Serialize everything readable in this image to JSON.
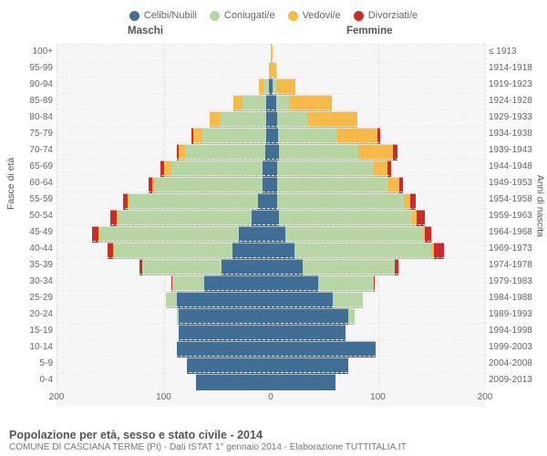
{
  "chart": {
    "type": "population-pyramid",
    "title": "Popolazione per età, sesso e stato civile - 2014",
    "subtitle": "COMUNE DI CASCIANA TERME (PI) - Dati ISTAT 1° gennaio 2014 - Elaborazione TUTTITALIA.IT",
    "header_left": "Maschi",
    "header_right": "Femmine",
    "y_left_label": "Fasce di età",
    "y_right_label": "Anni di nascita",
    "x_max": 200,
    "x_ticks": [
      200,
      100,
      0,
      100,
      200
    ],
    "colors": {
      "celibi": "#3f6f97",
      "coniugati": "#b7d6a3",
      "vedovi": "#f7ba49",
      "divorziati": "#cd2b29",
      "background": "#f6f6f6",
      "grid": "#dddddd"
    },
    "legend": [
      {
        "key": "celibi",
        "label": "Celibi/Nubili"
      },
      {
        "key": "coniugati",
        "label": "Coniugati/e"
      },
      {
        "key": "vedovi",
        "label": "Vedovi/e"
      },
      {
        "key": "divorziati",
        "label": "Divorziati/e"
      }
    ],
    "rows": [
      {
        "age": "100+",
        "year": "≤ 1913",
        "m": {
          "cel": 0,
          "con": 0,
          "ved": 0,
          "div": 0
        },
        "f": {
          "cel": 0,
          "con": 0,
          "ved": 2,
          "div": 0
        }
      },
      {
        "age": "95-99",
        "year": "1914-1918",
        "m": {
          "cel": 0,
          "con": 0,
          "ved": 2,
          "div": 0
        },
        "f": {
          "cel": 0,
          "con": 0,
          "ved": 5,
          "div": 0
        }
      },
      {
        "age": "90-94",
        "year": "1919-1923",
        "m": {
          "cel": 2,
          "con": 5,
          "ved": 4,
          "div": 0
        },
        "f": {
          "cel": 2,
          "con": 3,
          "ved": 18,
          "div": 0
        }
      },
      {
        "age": "85-89",
        "year": "1924-1928",
        "m": {
          "cel": 4,
          "con": 22,
          "ved": 9,
          "div": 0
        },
        "f": {
          "cel": 5,
          "con": 12,
          "ved": 40,
          "div": 0
        }
      },
      {
        "age": "80-84",
        "year": "1929-1933",
        "m": {
          "cel": 4,
          "con": 44,
          "ved": 9,
          "div": 0
        },
        "f": {
          "cel": 6,
          "con": 28,
          "ved": 47,
          "div": 0
        }
      },
      {
        "age": "75-79",
        "year": "1934-1938",
        "m": {
          "cel": 4,
          "con": 60,
          "ved": 8,
          "div": 2
        },
        "f": {
          "cel": 7,
          "con": 55,
          "ved": 38,
          "div": 2
        }
      },
      {
        "age": "70-74",
        "year": "1939-1943",
        "m": {
          "cel": 5,
          "con": 75,
          "ved": 6,
          "div": 2
        },
        "f": {
          "cel": 8,
          "con": 74,
          "ved": 32,
          "div": 4
        }
      },
      {
        "age": "65-69",
        "year": "1944-1948",
        "m": {
          "cel": 8,
          "con": 85,
          "ved": 7,
          "div": 3
        },
        "f": {
          "cel": 6,
          "con": 90,
          "ved": 13,
          "div": 3
        }
      },
      {
        "age": "60-64",
        "year": "1949-1953",
        "m": {
          "cel": 8,
          "con": 100,
          "ved": 3,
          "div": 3
        },
        "f": {
          "cel": 6,
          "con": 104,
          "ved": 10,
          "div": 3
        }
      },
      {
        "age": "55-59",
        "year": "1954-1958",
        "m": {
          "cel": 12,
          "con": 120,
          "ved": 2,
          "div": 4
        },
        "f": {
          "cel": 6,
          "con": 118,
          "ved": 6,
          "div": 5
        }
      },
      {
        "age": "50-54",
        "year": "1959-1963",
        "m": {
          "cel": 18,
          "con": 124,
          "ved": 2,
          "div": 6
        },
        "f": {
          "cel": 8,
          "con": 124,
          "ved": 4,
          "div": 8
        }
      },
      {
        "age": "45-49",
        "year": "1964-1968",
        "m": {
          "cel": 30,
          "con": 130,
          "ved": 1,
          "div": 6
        },
        "f": {
          "cel": 14,
          "con": 128,
          "ved": 2,
          "div": 6
        }
      },
      {
        "age": "40-44",
        "year": "1969-1973",
        "m": {
          "cel": 36,
          "con": 110,
          "ved": 1,
          "div": 5
        },
        "f": {
          "cel": 22,
          "con": 128,
          "ved": 2,
          "div": 10
        }
      },
      {
        "age": "35-39",
        "year": "1974-1978",
        "m": {
          "cel": 46,
          "con": 74,
          "ved": 0,
          "div": 3
        },
        "f": {
          "cel": 30,
          "con": 86,
          "ved": 0,
          "div": 3
        }
      },
      {
        "age": "30-34",
        "year": "1979-1983",
        "m": {
          "cel": 62,
          "con": 30,
          "ved": 0,
          "div": 1
        },
        "f": {
          "cel": 44,
          "con": 52,
          "ved": 0,
          "div": 1
        }
      },
      {
        "age": "25-29",
        "year": "1984-1988",
        "m": {
          "cel": 88,
          "con": 10,
          "ved": 0,
          "div": 0
        },
        "f": {
          "cel": 58,
          "con": 28,
          "ved": 0,
          "div": 0
        }
      },
      {
        "age": "20-24",
        "year": "1989-1993",
        "m": {
          "cel": 86,
          "con": 2,
          "ved": 0,
          "div": 0
        },
        "f": {
          "cel": 72,
          "con": 6,
          "ved": 0,
          "div": 0
        }
      },
      {
        "age": "15-19",
        "year": "1994-1998",
        "m": {
          "cel": 86,
          "con": 0,
          "ved": 0,
          "div": 0
        },
        "f": {
          "cel": 70,
          "con": 0,
          "ved": 0,
          "div": 0
        }
      },
      {
        "age": "10-14",
        "year": "1999-2003",
        "m": {
          "cel": 88,
          "con": 0,
          "ved": 0,
          "div": 0
        },
        "f": {
          "cel": 98,
          "con": 0,
          "ved": 0,
          "div": 0
        }
      },
      {
        "age": "5-9",
        "year": "2004-2008",
        "m": {
          "cel": 78,
          "con": 0,
          "ved": 0,
          "div": 0
        },
        "f": {
          "cel": 72,
          "con": 0,
          "ved": 0,
          "div": 0
        }
      },
      {
        "age": "0-4",
        "year": "2009-2013",
        "m": {
          "cel": 70,
          "con": 0,
          "ved": 0,
          "div": 0
        },
        "f": {
          "cel": 60,
          "con": 0,
          "ved": 0,
          "div": 0
        }
      }
    ]
  }
}
